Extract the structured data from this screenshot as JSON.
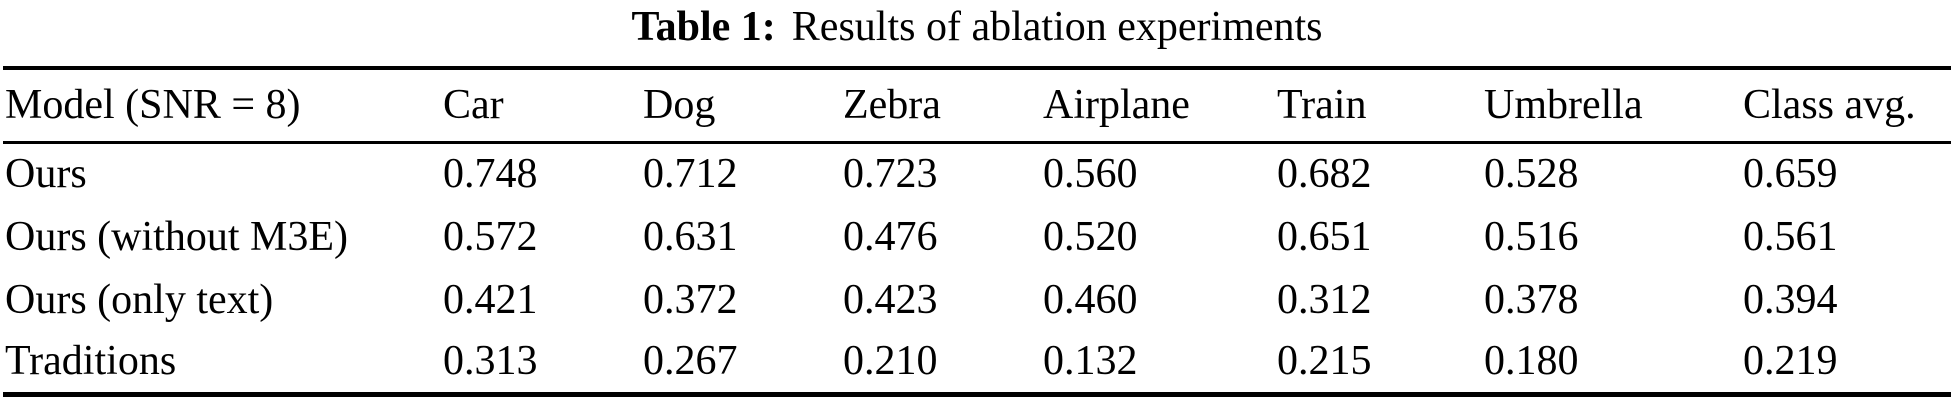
{
  "caption": {
    "label": "Table 1:",
    "text": "Results of ablation experiments"
  },
  "table": {
    "headers": [
      "Model (SNR = 8)",
      "Car",
      "Dog",
      "Zebra",
      "Airplane",
      "Train",
      "Umbrella",
      "Class avg."
    ],
    "rows": [
      {
        "model": "Ours",
        "values": [
          "0.748",
          "0.712",
          "0.723",
          "0.560",
          "0.682",
          "0.528",
          "0.659"
        ]
      },
      {
        "model": "Ours (without M3E)",
        "values": [
          "0.572",
          "0.631",
          "0.476",
          "0.520",
          "0.651",
          "0.516",
          "0.561"
        ]
      },
      {
        "model": "Ours (only text)",
        "values": [
          "0.421",
          "0.372",
          "0.423",
          "0.460",
          "0.312",
          "0.378",
          "0.394"
        ]
      },
      {
        "model": "Traditions",
        "values": [
          "0.313",
          "0.267",
          "0.210",
          "0.132",
          "0.215",
          "0.180",
          "0.219"
        ]
      }
    ]
  },
  "colors": {
    "text": "#000000",
    "rule": "#000000",
    "background": "#ffffff"
  }
}
